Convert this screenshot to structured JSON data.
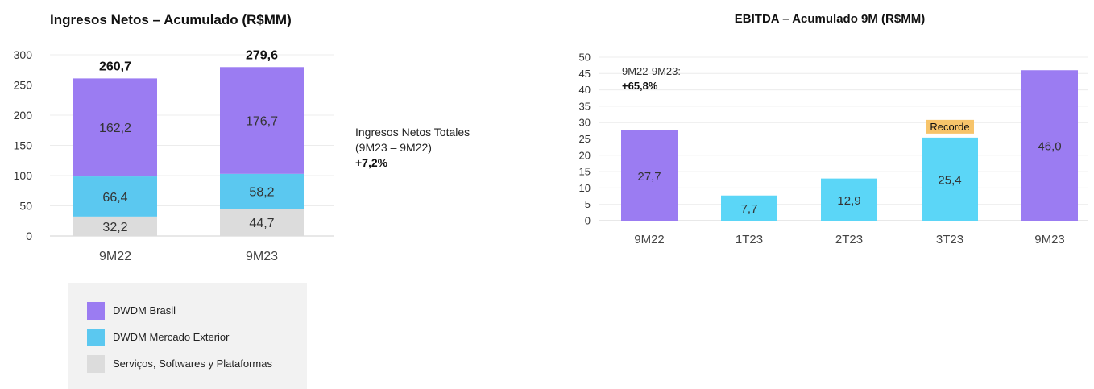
{
  "chart_data": [
    {
      "type": "bar",
      "stacked": true,
      "title": "Ingresos Netos – Acumulado (R$MM)",
      "categories": [
        "9M22",
        "9M23"
      ],
      "series": [
        {
          "name": "Serviços, Softwares y Plataformas",
          "values": [
            32.2,
            44.7
          ],
          "labels": [
            "32,2",
            "44,7"
          ],
          "color": "#dcdcdc"
        },
        {
          "name": "DWDM Mercado Exterior",
          "values": [
            66.4,
            58.2
          ],
          "labels": [
            "66,4",
            "58,2"
          ],
          "color": "#5bc8f0"
        },
        {
          "name": "DWDM Brasil",
          "values": [
            162.2,
            176.7
          ],
          "labels": [
            "162,2",
            "176,7"
          ],
          "color": "#9b7cf2"
        }
      ],
      "totals": [
        "260,7",
        "279,6"
      ],
      "total_values": [
        260.7,
        279.6
      ],
      "yticks": [
        0,
        50,
        100,
        150,
        200,
        250,
        300
      ],
      "ylim": [
        0,
        300
      ],
      "grid": true,
      "legend": {
        "placement": "bottom",
        "items": [
          {
            "label": "DWDM Brasil",
            "color": "#9b7cf2"
          },
          {
            "label": "DWDM Mercado Exterior",
            "color": "#5bc8f0"
          },
          {
            "label": "Serviços, Softwares y Plataformas",
            "color": "#dcdcdc"
          }
        ]
      },
      "annotation": {
        "lines": [
          "Ingresos Netos Totales",
          "(9M23 – 9M22)"
        ],
        "highlight": "+7,2%"
      }
    },
    {
      "type": "bar",
      "title": "EBITDA – Acumulado 9M (R$MM)",
      "categories": [
        "9M22",
        "1T23",
        "2T23",
        "3T23",
        "9M23"
      ],
      "values": [
        27.7,
        7.7,
        12.9,
        25.4,
        46.0
      ],
      "labels": [
        "27,7",
        "7,7",
        "12,9",
        "25,4",
        "46,0"
      ],
      "colors": [
        "#9b7cf2",
        "#5bd6f7",
        "#5bd6f7",
        "#5bd6f7",
        "#9b7cf2"
      ],
      "yticks": [
        0,
        5,
        10,
        15,
        20,
        25,
        30,
        35,
        40,
        45,
        50
      ],
      "ylim": [
        0,
        50
      ],
      "grid": true,
      "annotation": {
        "lines": [
          "9M22-9M23:"
        ],
        "highlight": "+65,8%"
      },
      "badge": {
        "text": "Recorde",
        "category": "3T23",
        "color": "#f7c46a"
      }
    }
  ]
}
